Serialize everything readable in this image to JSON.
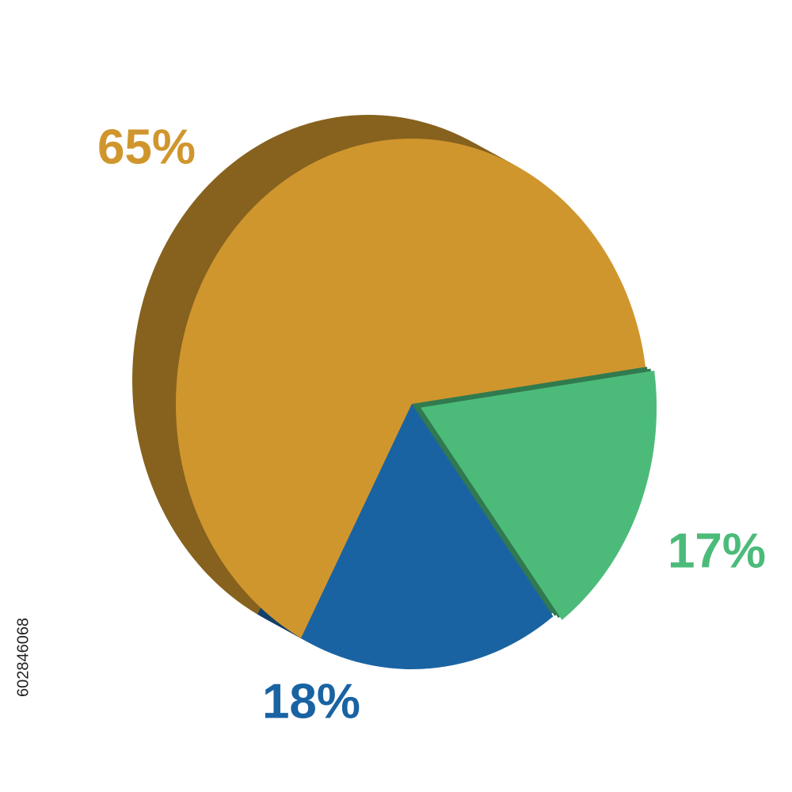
{
  "chart_data": {
    "type": "pie",
    "categories": [
      null,
      null,
      null
    ],
    "values": [
      65,
      17,
      18
    ],
    "value_labels": [
      "65%",
      "17%",
      "18%"
    ],
    "colors": [
      "#d0962e",
      "#4cbb7a",
      "#1a63a3"
    ]
  },
  "side_text": "602846068"
}
